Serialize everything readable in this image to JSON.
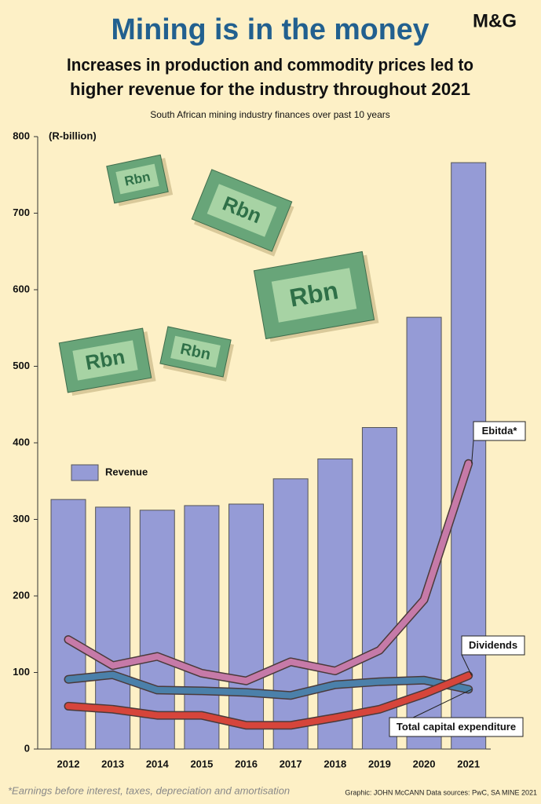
{
  "chart_data": {
    "type": "bar",
    "title": "Mining is in the money",
    "subtitle": [
      "Increases in production and commodity prices led to",
      "higher revenue for the industry throughout 2021"
    ],
    "caption": "South African mining industry finances over past 10 years",
    "y_label": "(R-billion)",
    "logo": "M&G",
    "decoration_label": "Rbn",
    "footnote": "*Earnings before interest, taxes, depreciation and amortisation",
    "credit": "Graphic: JOHN McCANN  Data sources: PwC, SA MINE 2021",
    "categories": [
      "2012",
      "2013",
      "2014",
      "2015",
      "2016",
      "2017",
      "2018",
      "2019",
      "2020",
      "2021"
    ],
    "ylim": [
      0,
      800
    ],
    "yticks": [
      0,
      100,
      200,
      300,
      400,
      500,
      600,
      700,
      800
    ],
    "series": [
      {
        "name": "Revenue",
        "type": "bar",
        "color": "#959bd6",
        "values": [
          326,
          316,
          312,
          318,
          320,
          353,
          379,
          420,
          564,
          766
        ]
      },
      {
        "name": "Ebitda*",
        "type": "line",
        "color": "#c67aa8",
        "values": [
          143,
          109,
          121,
          99,
          89,
          114,
          102,
          129,
          195,
          373
        ]
      },
      {
        "name": "Total capital expenditure",
        "type": "line",
        "color": "#4b80aa",
        "values": [
          91,
          97,
          77,
          76,
          74,
          70,
          84,
          88,
          90,
          78
        ]
      },
      {
        "name": "Dividends",
        "type": "line",
        "color": "#d6453b",
        "values": [
          56,
          52,
          44,
          44,
          31,
          31,
          41,
          52,
          72,
          96
        ]
      }
    ]
  }
}
